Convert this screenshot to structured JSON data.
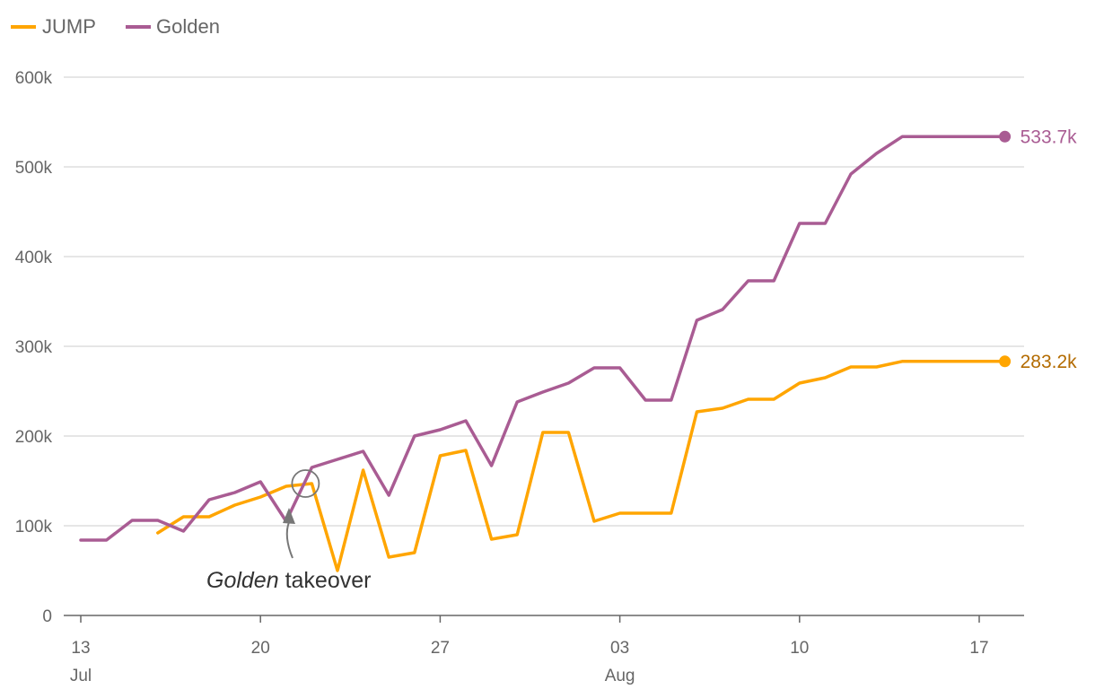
{
  "chart_data": {
    "type": "line",
    "title": "",
    "xlabel": "",
    "ylabel": "",
    "ylim": [
      0,
      600000
    ],
    "y_ticks": [
      {
        "value": 0,
        "label": "0"
      },
      {
        "value": 100000,
        "label": "100k"
      },
      {
        "value": 200000,
        "label": "200k"
      },
      {
        "value": 300000,
        "label": "300k"
      },
      {
        "value": 400000,
        "label": "400k"
      },
      {
        "value": 500000,
        "label": "500k"
      },
      {
        "value": 600000,
        "label": "600k"
      }
    ],
    "x_ticks": [
      {
        "date": "2023-07-13",
        "label": "13",
        "sublabel": "Jul"
      },
      {
        "date": "2023-07-20",
        "label": "20",
        "sublabel": ""
      },
      {
        "date": "2023-07-27",
        "label": "27",
        "sublabel": ""
      },
      {
        "date": "2023-08-03",
        "label": "03",
        "sublabel": "Aug"
      },
      {
        "date": "2023-08-10",
        "label": "10",
        "sublabel": ""
      },
      {
        "date": "2023-08-17",
        "label": "17",
        "sublabel": ""
      }
    ],
    "x_range": [
      "2023-07-12",
      "2023-08-18"
    ],
    "grid": true,
    "legend_position": "top-left",
    "series": [
      {
        "name": "JUMP",
        "color": "#FFA500",
        "end_label": "283.2k",
        "end_label_color": "#B36B00",
        "points": [
          [
            "2023-07-16",
            92000
          ],
          [
            "2023-07-17",
            110000
          ],
          [
            "2023-07-18",
            110000
          ],
          [
            "2023-07-19",
            123000
          ],
          [
            "2023-07-20",
            132000
          ],
          [
            "2023-07-21",
            144000
          ],
          [
            "2023-07-22",
            147000
          ],
          [
            "2023-07-23",
            50000
          ],
          [
            "2023-07-24",
            162000
          ],
          [
            "2023-07-25",
            65000
          ],
          [
            "2023-07-26",
            70000
          ],
          [
            "2023-07-27",
            178000
          ],
          [
            "2023-07-28",
            184000
          ],
          [
            "2023-07-29",
            85000
          ],
          [
            "2023-07-30",
            90000
          ],
          [
            "2023-07-31",
            204000
          ],
          [
            "2023-08-01",
            204000
          ],
          [
            "2023-08-02",
            105000
          ],
          [
            "2023-08-03",
            114000
          ],
          [
            "2023-08-04",
            114000
          ],
          [
            "2023-08-05",
            114000
          ],
          [
            "2023-08-06",
            227000
          ],
          [
            "2023-08-07",
            231000
          ],
          [
            "2023-08-08",
            241000
          ],
          [
            "2023-08-09",
            241000
          ],
          [
            "2023-08-10",
            259000
          ],
          [
            "2023-08-11",
            265000
          ],
          [
            "2023-08-12",
            277000
          ],
          [
            "2023-08-13",
            277000
          ],
          [
            "2023-08-14",
            283200
          ],
          [
            "2023-08-15",
            283200
          ],
          [
            "2023-08-16",
            283200
          ],
          [
            "2023-08-17",
            283200
          ],
          [
            "2023-08-18",
            283200
          ]
        ]
      },
      {
        "name": "Golden",
        "color": "#A95C93",
        "end_label": "533.7k",
        "end_label_color": "#A95C93",
        "points": [
          [
            "2023-07-13",
            84000
          ],
          [
            "2023-07-14",
            84000
          ],
          [
            "2023-07-15",
            106000
          ],
          [
            "2023-07-16",
            106000
          ],
          [
            "2023-07-17",
            94000
          ],
          [
            "2023-07-18",
            129000
          ],
          [
            "2023-07-19",
            137000
          ],
          [
            "2023-07-20",
            149000
          ],
          [
            "2023-07-21",
            105000
          ],
          [
            "2023-07-22",
            165000
          ],
          [
            "2023-07-23",
            174000
          ],
          [
            "2023-07-24",
            183000
          ],
          [
            "2023-07-25",
            134000
          ],
          [
            "2023-07-26",
            200000
          ],
          [
            "2023-07-27",
            207000
          ],
          [
            "2023-07-28",
            217000
          ],
          [
            "2023-07-29",
            167000
          ],
          [
            "2023-07-30",
            238000
          ],
          [
            "2023-07-31",
            249000
          ],
          [
            "2023-08-01",
            259000
          ],
          [
            "2023-08-02",
            276000
          ],
          [
            "2023-08-03",
            276000
          ],
          [
            "2023-08-04",
            240000
          ],
          [
            "2023-08-05",
            240000
          ],
          [
            "2023-08-06",
            329000
          ],
          [
            "2023-08-07",
            341000
          ],
          [
            "2023-08-08",
            373000
          ],
          [
            "2023-08-09",
            373000
          ],
          [
            "2023-08-10",
            437000
          ],
          [
            "2023-08-11",
            437000
          ],
          [
            "2023-08-12",
            492000
          ],
          [
            "2023-08-13",
            515000
          ],
          [
            "2023-08-14",
            533700
          ],
          [
            "2023-08-15",
            533700
          ],
          [
            "2023-08-16",
            533700
          ],
          [
            "2023-08-17",
            533700
          ],
          [
            "2023-08-18",
            533700
          ]
        ]
      }
    ],
    "annotations": [
      {
        "emphasis": "Golden",
        "text": " takeover",
        "date": "2023-07-22",
        "value": 145000
      }
    ]
  },
  "colors": {
    "grid": "#DDDDDD",
    "axis": "#666666",
    "annotation": "#777777"
  }
}
